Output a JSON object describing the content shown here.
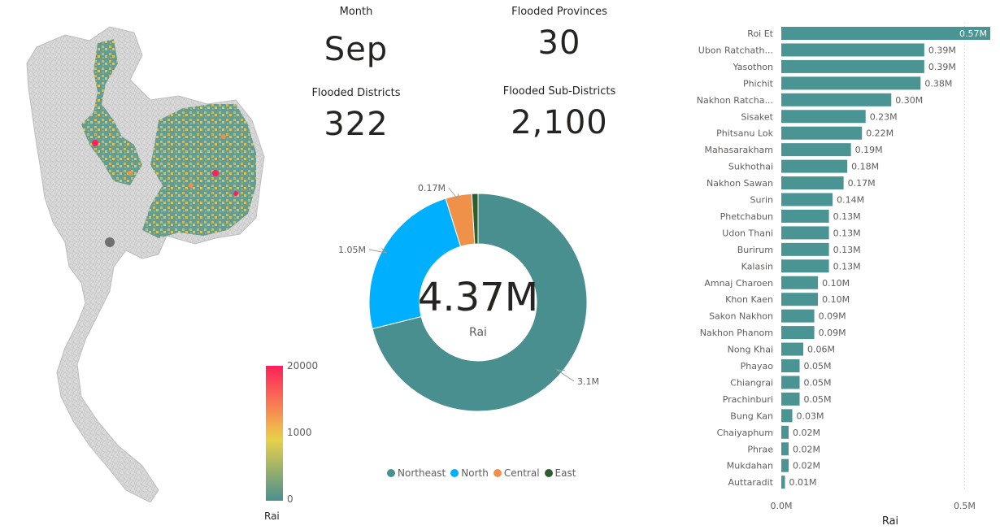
{
  "kpis": {
    "month": {
      "label": "Month",
      "value": "Sep"
    },
    "provinces": {
      "label": "Flooded Provinces",
      "value": "30"
    },
    "districts": {
      "label": "Flooded Districts",
      "value": "322"
    },
    "subdistricts": {
      "label": "Flooded Sub-Districts",
      "value": "2,100"
    }
  },
  "map": {
    "legend_title": "Rai",
    "legend_ticks": [
      "20000",
      "1000",
      "0"
    ],
    "legend_colors": [
      "#ff1f5b",
      "#f2c14e",
      "#e6d14a",
      "#4a8f8f"
    ]
  },
  "colors": {
    "Northeast": "#4a8f8f",
    "North": "#00b0ff",
    "Central": "#f0914a",
    "East": "#2e5e2e",
    "bar": "#4a9494"
  },
  "chart_data": [
    {
      "type": "pie",
      "subtype": "donut",
      "center_value": "4.37M",
      "center_label": "Rai",
      "categories": [
        "Northeast",
        "North",
        "Central",
        "East"
      ],
      "values": [
        3.1,
        1.05,
        0.17,
        0.04
      ],
      "data_labels": [
        "3.1M",
        "1.05M",
        "0.17M",
        ""
      ],
      "legend": {
        "position": "bottom",
        "entries": [
          "Northeast",
          "North",
          "Central",
          "East"
        ]
      }
    },
    {
      "type": "bar",
      "orientation": "horizontal",
      "categories": [
        "Roi Et",
        "Ubon Ratchath...",
        "Yasothon",
        "Phichit",
        "Nakhon Ratcha...",
        "Sisaket",
        "Phitsanu Lok",
        "Mahasarakham",
        "Sukhothai",
        "Nakhon Sawan",
        "Surin",
        "Phetchabun",
        "Udon Thani",
        "Burirum",
        "Kalasin",
        "Amnaj Charoen",
        "Khon Kaen",
        "Sakon Nakhon",
        "Nakhon Phanom",
        "Nong Khai",
        "Phayao",
        "Chiangrai",
        "Prachinburi",
        "Bung Kan",
        "Chaiyaphum",
        "Phrae",
        "Mukdahan",
        "Auttaradit"
      ],
      "values": [
        0.57,
        0.39,
        0.39,
        0.38,
        0.3,
        0.23,
        0.22,
        0.19,
        0.18,
        0.17,
        0.14,
        0.13,
        0.13,
        0.13,
        0.13,
        0.1,
        0.1,
        0.09,
        0.09,
        0.06,
        0.05,
        0.05,
        0.05,
        0.03,
        0.02,
        0.02,
        0.02,
        0.01
      ],
      "data_labels": [
        "0.57M",
        "0.39M",
        "0.39M",
        "0.38M",
        "0.30M",
        "0.23M",
        "0.22M",
        "0.19M",
        "0.18M",
        "0.17M",
        "0.14M",
        "0.13M",
        "0.13M",
        "0.13M",
        "0.13M",
        "0.10M",
        "0.10M",
        "0.09M",
        "0.09M",
        "0.06M",
        "0.05M",
        "0.05M",
        "0.05M",
        "0.03M",
        "0.02M",
        "0.02M",
        "0.02M",
        "0.01M"
      ],
      "xlabel": "Rai",
      "x_ticks": [
        "0.0M",
        "0.5M"
      ],
      "xlim": [
        0,
        0.57
      ]
    }
  ]
}
